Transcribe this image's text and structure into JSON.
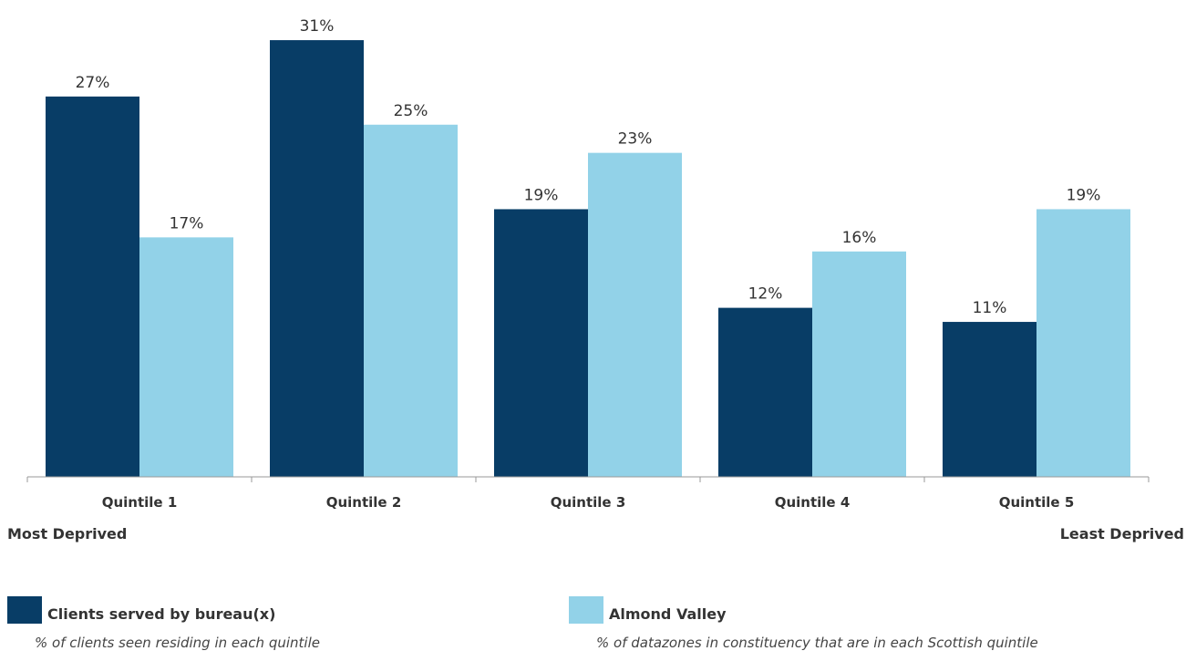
{
  "chart_data": {
    "type": "bar",
    "categories": [
      "Quintile 1",
      "Quintile 2",
      "Quintile 3",
      "Quintile 4",
      "Quintile 5"
    ],
    "series": [
      {
        "name": "Clients served by bureau(x)",
        "note": "% of clients seen residing in each quintile",
        "values": [
          27,
          31,
          19,
          12,
          11
        ],
        "labels": [
          "27%",
          "31%",
          "19%",
          "12%",
          "11%"
        ],
        "color": "#083d66"
      },
      {
        "name": "Almond Valley",
        "note": "% of datazones in constituency that are in each Scottish quintile",
        "values": [
          17,
          25,
          23,
          16,
          19
        ],
        "labels": [
          "17%",
          "25%",
          "23%",
          "16%",
          "19%"
        ],
        "color": "#92d2e8"
      }
    ],
    "ylim": [
      0,
      34
    ],
    "grid": false,
    "legend_position": "bottom",
    "left_end_label": "Most Deprived",
    "right_end_label": "Least Deprived"
  }
}
